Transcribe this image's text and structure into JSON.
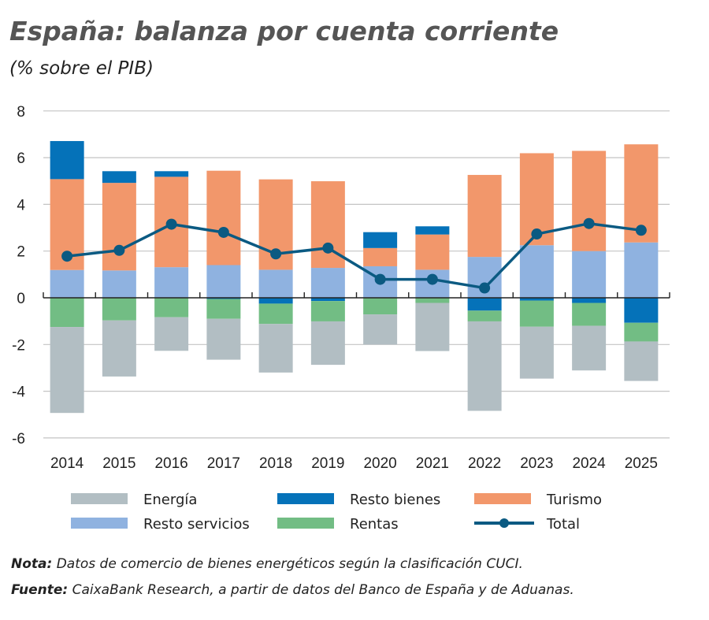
{
  "title": "España: balanza por cuenta corriente",
  "subtitle": "(% sobre el PIB)",
  "chart_data": {
    "type": "bar",
    "stacked": true,
    "title": "España: balanza por cuenta corriente",
    "subtitle": "(% sobre el PIB)",
    "categories": [
      "2014",
      "2015",
      "2016",
      "2017",
      "2018",
      "2019",
      "2020",
      "2021",
      "2022",
      "2023",
      "2024",
      "2025"
    ],
    "ylim": [
      -6,
      8
    ],
    "yticks": [
      -6,
      -4,
      -2,
      0,
      2,
      4,
      6,
      8
    ],
    "grid": true,
    "legend_position": "bottom",
    "series": [
      {
        "name": "Energía",
        "type": "bar",
        "color": "#b2bec3",
        "values": [
          -3.68,
          -2.4,
          -1.44,
          -1.75,
          -2.08,
          -1.86,
          -1.29,
          -2.06,
          -3.83,
          -2.22,
          -1.91,
          -1.69
        ]
      },
      {
        "name": "Resto bienes",
        "type": "bar",
        "color": "#0572b9",
        "values": [
          1.63,
          0.5,
          0.24,
          -0.05,
          -0.25,
          -0.14,
          0.68,
          0.35,
          -0.55,
          -0.12,
          -0.22,
          -1.07
        ]
      },
      {
        "name": "Turismo",
        "type": "bar",
        "color": "#f2976b",
        "values": [
          3.89,
          3.75,
          3.87,
          4.04,
          3.87,
          3.71,
          0.78,
          1.51,
          3.51,
          3.94,
          4.29,
          4.2
        ]
      },
      {
        "name": "Resto servicios",
        "type": "bar",
        "color": "#8fb2e0",
        "values": [
          1.19,
          1.17,
          1.31,
          1.4,
          1.2,
          1.28,
          1.35,
          1.2,
          1.75,
          2.25,
          2.0,
          2.37
        ]
      },
      {
        "name": "Rentas",
        "type": "bar",
        "color": "#72bd84",
        "values": [
          -1.25,
          -0.97,
          -0.83,
          -0.85,
          -0.87,
          -0.87,
          -0.71,
          -0.22,
          -0.46,
          -1.12,
          -0.98,
          -0.8
        ]
      },
      {
        "name": "Total",
        "type": "line",
        "color": "#0b5a82",
        "values": [
          1.78,
          2.03,
          3.15,
          2.8,
          1.88,
          2.13,
          0.79,
          0.79,
          0.42,
          2.73,
          3.18,
          2.89
        ]
      }
    ]
  },
  "notes": {
    "nota_label": "Nota:",
    "nota_text": " Datos de comercio de bienes energéticos según la clasificación CUCI.",
    "fuente_label": "Fuente:",
    "fuente_text": " CaixaBank Research, a partir de datos del Banco de España y de Aduanas."
  }
}
